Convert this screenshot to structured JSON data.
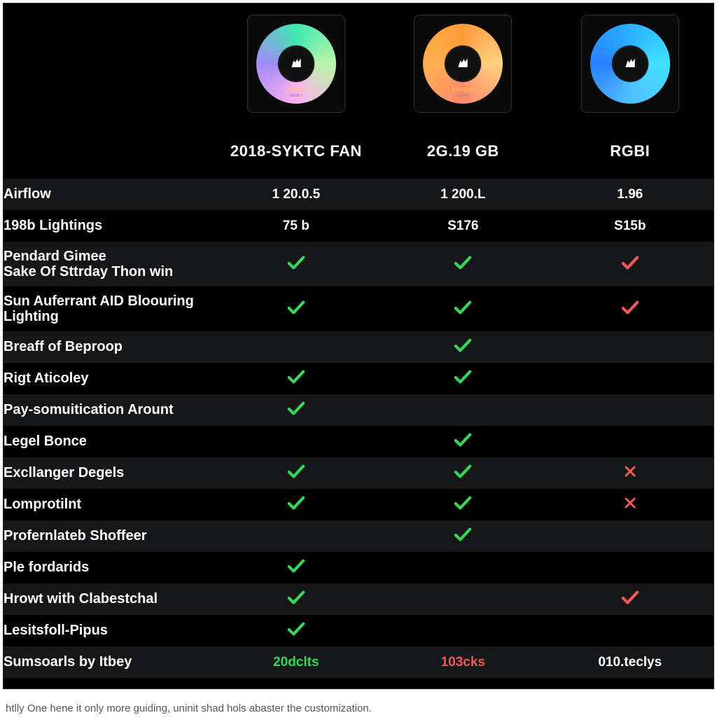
{
  "colors": {
    "bg": "#000000",
    "strip": "#161719",
    "text": "#ffffff",
    "check_green": "#35d65a",
    "check_red": "#f05a5a"
  },
  "products": [
    {
      "key": "p1",
      "name": "2018-SYKTC FAN",
      "ring_style": "green"
    },
    {
      "key": "p2",
      "name": "2G.19 GB",
      "ring_style": "orange"
    },
    {
      "key": "p3",
      "name": "RGBI",
      "ring_style": "blue"
    }
  ],
  "rows": [
    {
      "label": "Airflow",
      "cells": [
        "1 20.0.5",
        "1 200.L",
        "1.96"
      ],
      "strip": true
    },
    {
      "label": "198b Lightings",
      "cells": [
        "75 b",
        "S176",
        "S15b"
      ]
    },
    {
      "label": "Pendard Gimee\nSake Of Sttrday Thon win",
      "cells": [
        "check-green",
        "check-green",
        "check-red"
      ],
      "strip": true,
      "two_line": true
    },
    {
      "label": "Sun Auferrant AID Bloouring\nLighting",
      "cells": [
        "check-green",
        "check-green",
        "check-red"
      ],
      "two_line": true
    },
    {
      "label": "Breaff of Beproop",
      "cells": [
        "",
        "check-green",
        ""
      ],
      "strip": true
    },
    {
      "label": "Rigt Aticoley",
      "cells": [
        "check-green",
        "check-green",
        ""
      ]
    },
    {
      "label": "Pay-somuitication Arount",
      "cells": [
        "check-green",
        "",
        ""
      ],
      "strip": true
    },
    {
      "label": "Legel Bonce",
      "cells": [
        "",
        "check-green",
        ""
      ]
    },
    {
      "label": "Excllanger Degels",
      "cells": [
        "check-green",
        "check-green",
        "x-red"
      ],
      "strip": true
    },
    {
      "label": "Lomprotilnt",
      "cells": [
        "check-green",
        "check-green",
        "x-red"
      ]
    },
    {
      "label": "Profernlateb Shoffeer",
      "cells": [
        "",
        "check-green",
        ""
      ],
      "strip": true
    },
    {
      "label": "Ple fordarids",
      "cells": [
        "check-green",
        "",
        ""
      ]
    },
    {
      "label": "Hrowt with Clabestchal",
      "cells": [
        "check-green",
        "",
        "check-red"
      ],
      "strip": true
    },
    {
      "label": "Lesitsfoll-Pipus",
      "cells": [
        "check-green",
        "",
        ""
      ]
    },
    {
      "label": "Sumsoarls by Itbey",
      "cells": [
        {
          "text": "20dclts",
          "cls": "green"
        },
        {
          "text": "103cks",
          "cls": "red"
        },
        {
          "text": "010.teclys",
          "cls": ""
        }
      ],
      "strip": true
    }
  ],
  "footer": "htlly One hene it only more guiding, uninit shad hols abaster the customization."
}
